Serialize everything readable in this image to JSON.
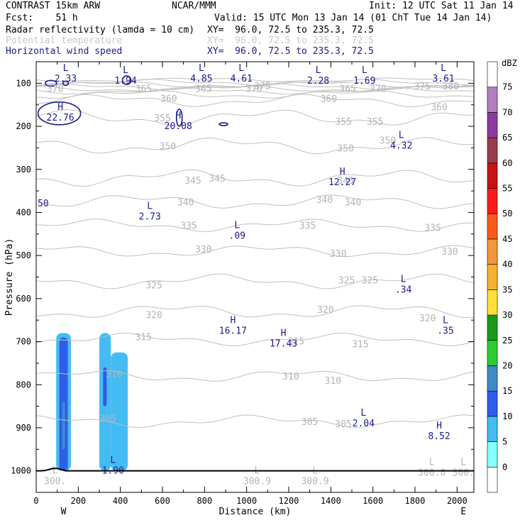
{
  "header": {
    "model": "CONTRAST 15km ARW",
    "center": "NCAR/MMM",
    "init": "Init: 12 UTC Sat 11 Jan 14",
    "fcst": "Fcst:    51 h",
    "valid": "Valid: 15 UTC Mon 13 Jan 14 (01 ChT Tue 14 Jan 14)",
    "fields": [
      {
        "name": "Radar reflectivity (lamda = 10 cm)",
        "xy": "XY=  96.0, 72.5 to 235.3, 72.5",
        "color": "#000000"
      },
      {
        "name": "Potential temperature",
        "xy": "XY=  96.0, 72.5 to 235.3, 72.5",
        "color": "#c8c8c8"
      },
      {
        "name": "Horizontal wind speed",
        "xy": "XY=  96.0, 72.5 to 235.3, 72.5",
        "color": "#1a1a8c"
      }
    ]
  },
  "chart_data": {
    "type": "cross-section",
    "xlabel": "Distance (km)",
    "ylabel": "Pressure (hPa)",
    "xlim": [
      0,
      2080
    ],
    "ylim": [
      1050,
      50
    ],
    "x_ticks": [
      0,
      200,
      400,
      600,
      800,
      1000,
      1200,
      1400,
      1600,
      1800,
      2000
    ],
    "y_ticks": [
      100,
      200,
      300,
      400,
      500,
      600,
      700,
      800,
      900,
      1000
    ],
    "direction_left": "W",
    "direction_right": "E",
    "colorbar": {
      "unit": "dBZ",
      "levels": [
        0,
        5,
        10,
        15,
        20,
        25,
        30,
        35,
        40,
        45,
        50,
        55,
        60,
        65,
        70,
        75
      ],
      "colors": [
        "#ffffff",
        "#88ffff",
        "#44bbf2",
        "#2f5ce8",
        "#3f8bc8",
        "#2fcc2f",
        "#1a9a1a",
        "#ffe03a",
        "#f7b030",
        "#f29640",
        "#fa5a1a",
        "#ff1a1a",
        "#c81414",
        "#993d4a",
        "#8c3aa0",
        "#b27fc0",
        "#ffffff"
      ]
    },
    "theta_labels": [
      {
        "v": "370",
        "x": 90,
        "p": 112
      },
      {
        "v": "365",
        "x": 510,
        "p": 112
      },
      {
        "v": "365",
        "x": 795,
        "p": 112
      },
      {
        "v": "370",
        "x": 1035,
        "p": 112
      },
      {
        "v": "375",
        "x": 1075,
        "p": 105
      },
      {
        "v": "365",
        "x": 1480,
        "p": 112
      },
      {
        "v": "370",
        "x": 1625,
        "p": 112
      },
      {
        "v": "375",
        "x": 1835,
        "p": 106
      },
      {
        "v": "380",
        "x": 1970,
        "p": 106
      },
      {
        "v": "360",
        "x": 630,
        "p": 135
      },
      {
        "v": "360",
        "x": 1390,
        "p": 135
      },
      {
        "v": "360",
        "x": 1915,
        "p": 155
      },
      {
        "v": "355",
        "x": 600,
        "p": 180
      },
      {
        "v": "355",
        "x": 1460,
        "p": 188
      },
      {
        "v": "355",
        "x": 1610,
        "p": 188
      },
      {
        "v": "350",
        "x": 625,
        "p": 245
      },
      {
        "v": "350",
        "x": 1470,
        "p": 250
      },
      {
        "v": "350",
        "x": 1670,
        "p": 232
      },
      {
        "v": "345",
        "x": 745,
        "p": 325
      },
      {
        "v": "345",
        "x": 860,
        "p": 320
      },
      {
        "v": "345",
        "x": 1470,
        "p": 325
      },
      {
        "v": "340",
        "x": 710,
        "p": 375
      },
      {
        "v": "340",
        "x": 1370,
        "p": 370
      },
      {
        "v": "340",
        "x": 1505,
        "p": 375
      },
      {
        "v": "335",
        "x": 725,
        "p": 430
      },
      {
        "v": "335",
        "x": 1290,
        "p": 430
      },
      {
        "v": "335",
        "x": 1885,
        "p": 435
      },
      {
        "v": "330",
        "x": 795,
        "p": 485
      },
      {
        "v": "330",
        "x": 1435,
        "p": 495
      },
      {
        "v": "330",
        "x": 1965,
        "p": 490
      },
      {
        "v": "325",
        "x": 560,
        "p": 568
      },
      {
        "v": "325",
        "x": 1475,
        "p": 557
      },
      {
        "v": "325",
        "x": 1585,
        "p": 557
      },
      {
        "v": "320",
        "x": 560,
        "p": 637
      },
      {
        "v": "320",
        "x": 1375,
        "p": 625
      },
      {
        "v": "320",
        "x": 1860,
        "p": 645
      },
      {
        "v": "315",
        "x": 510,
        "p": 688
      },
      {
        "v": "315",
        "x": 1235,
        "p": 698
      },
      {
        "v": "315",
        "x": 1540,
        "p": 705
      },
      {
        "v": "310",
        "x": 370,
        "p": 775
      },
      {
        "v": "310",
        "x": 1210,
        "p": 780
      },
      {
        "v": "310",
        "x": 1410,
        "p": 790
      },
      {
        "v": "305",
        "x": 340,
        "p": 878
      },
      {
        "v": "305",
        "x": 1300,
        "p": 885
      },
      {
        "v": "305",
        "x": 1460,
        "p": 890
      }
    ],
    "extrema": [
      {
        "kind": "L",
        "value": "2.33",
        "x": 140,
        "p": 75,
        "field": "wind"
      },
      {
        "kind": "L",
        "value": "1.94",
        "x": 425,
        "p": 80,
        "field": "wind"
      },
      {
        "kind": "L",
        "value": "4.85",
        "x": 785,
        "p": 75,
        "field": "wind"
      },
      {
        "kind": "L",
        "value": "4.61",
        "x": 975,
        "p": 75,
        "field": "wind"
      },
      {
        "kind": "L",
        "value": "2.28",
        "x": 1340,
        "p": 80,
        "field": "wind"
      },
      {
        "kind": "L",
        "value": "1.69",
        "x": 1560,
        "p": 80,
        "field": "wind"
      },
      {
        "kind": "L",
        "value": "3.61",
        "x": 1935,
        "p": 75,
        "field": "wind"
      },
      {
        "kind": "H",
        "value": "22.76",
        "x": 115,
        "p": 165,
        "field": "wind"
      },
      {
        "kind": "H",
        "value": "20.08",
        "x": 675,
        "p": 185,
        "field": "wind"
      },
      {
        "kind": "L",
        "value": "4.32",
        "x": 1735,
        "p": 230,
        "field": "wind"
      },
      {
        "kind": "H",
        "value": "12.27",
        "x": 1455,
        "p": 315,
        "field": "wind"
      },
      {
        "kind": "",
        "value": ".50",
        "x": 20,
        "p": 365,
        "field": "wind"
      },
      {
        "kind": "L",
        "value": "2.73",
        "x": 540,
        "p": 395,
        "field": "wind"
      },
      {
        "kind": "L",
        "value": ".09",
        "x": 955,
        "p": 440,
        "field": "wind"
      },
      {
        "kind": "L",
        "value": ".34",
        "x": 1745,
        "p": 565,
        "field": "wind"
      },
      {
        "kind": "H",
        "value": "16.17",
        "x": 935,
        "p": 660,
        "field": "wind"
      },
      {
        "kind": "L",
        "value": ".35",
        "x": 1945,
        "p": 660,
        "field": "wind"
      },
      {
        "kind": "H",
        "value": "17.43",
        "x": 1175,
        "p": 690,
        "field": "wind"
      },
      {
        "kind": "L",
        "value": "2.04",
        "x": 1555,
        "p": 875,
        "field": "wind"
      },
      {
        "kind": "H",
        "value": "8.52",
        "x": 1915,
        "p": 905,
        "field": "wind"
      },
      {
        "kind": "L",
        "value": "1.90",
        "x": 365,
        "p": 985,
        "field": "wind"
      },
      {
        "kind": "L",
        "value": "300.",
        "x": 90,
        "p": 1010,
        "field": "theta"
      },
      {
        "kind": "L",
        "value": "300.9",
        "x": 1050,
        "p": 1010,
        "field": "theta"
      },
      {
        "kind": "L",
        "value": "300.9",
        "x": 1325,
        "p": 1010,
        "field": "theta"
      },
      {
        "kind": "L",
        "value": "300.8",
        "x": 1880,
        "p": 990,
        "field": "theta"
      },
      {
        "kind": "L",
        "value": "300.",
        "x": 2030,
        "p": 990,
        "field": "theta"
      }
    ],
    "reflectivity_cells": [
      {
        "x0": 95,
        "x1": 165,
        "p_top": 680,
        "p_bot": 1000,
        "dbz": 5
      },
      {
        "x0": 110,
        "x1": 150,
        "p_top": 690,
        "p_bot": 1000,
        "dbz": 10
      },
      {
        "x0": 123,
        "x1": 137,
        "p_top": 840,
        "p_bot": 950,
        "dbz": 15
      },
      {
        "x0": 300,
        "x1": 355,
        "p_top": 680,
        "p_bot": 1000,
        "dbz": 5
      },
      {
        "x0": 355,
        "x1": 435,
        "p_top": 725,
        "p_bot": 1000,
        "dbz": 5
      },
      {
        "x0": 318,
        "x1": 335,
        "p_top": 760,
        "p_bot": 850,
        "dbz": 10
      }
    ]
  }
}
